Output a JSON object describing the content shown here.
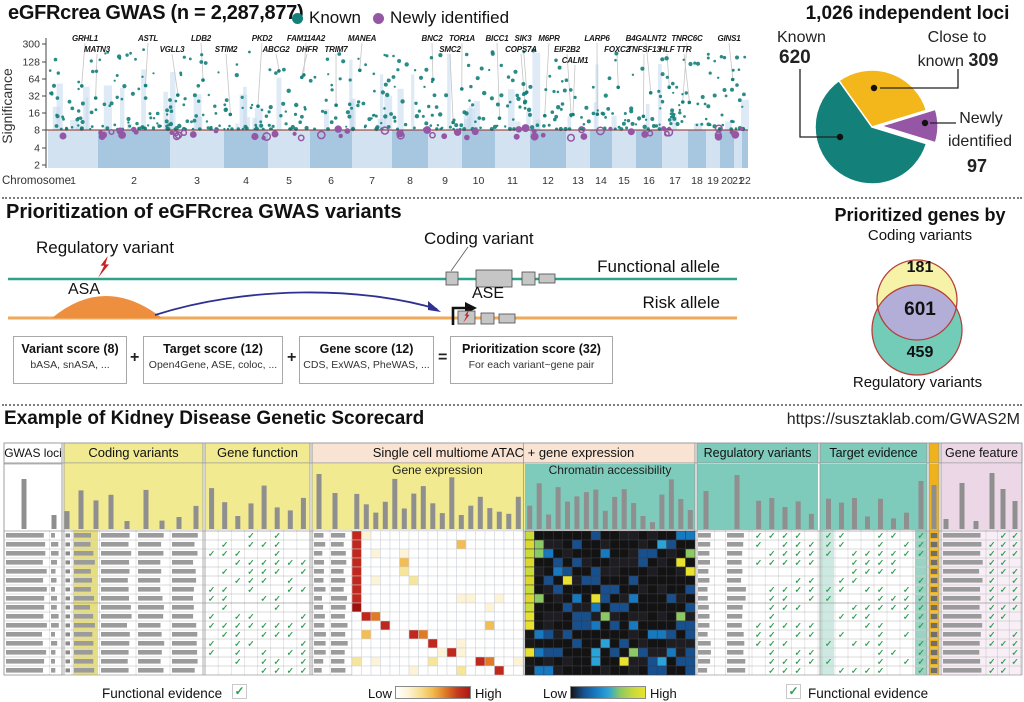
{
  "a": {
    "title": "eGFRcrea GWAS (n = 2,287,877)",
    "legend": [
      {
        "label": "Known",
        "color": "#14807a"
      },
      {
        "label": "Newly identified",
        "color": "#9456a5"
      }
    ],
    "y_axis": {
      "label": "Significance",
      "ticks": [
        "300",
        "128",
        "64",
        "32",
        "16",
        "8",
        "4",
        "2"
      ]
    },
    "x_axis": {
      "label": "Chromosome",
      "ticks": [
        "1",
        "2",
        "3",
        "4",
        "5",
        "6",
        "7",
        "8",
        "9",
        "10",
        "11",
        "12",
        "13",
        "14",
        "15",
        "16",
        "17",
        "18",
        "19",
        "20",
        "21",
        "22"
      ]
    },
    "pie": {
      "title": "1,026 independent loci",
      "known_label": "Known",
      "known_value": "620",
      "close_label_1": "Close to",
      "close_label_2": "known",
      "close_value": "309",
      "newly_label_1": "Newly",
      "newly_label_2": "identified",
      "newly_value": "97"
    }
  },
  "b": {
    "title": "Prioritization of eGFRcrea GWAS variants",
    "diagram": {
      "regulatory_variant": "Regulatory variant",
      "asa": "ASA",
      "coding_variant": "Coding variant",
      "ase": "ASE",
      "functional_allele": "Functional allele",
      "risk_allele": "Risk allele"
    },
    "boxes": [
      {
        "title": "Variant score (8)",
        "sub": "bASA, snASA, ..."
      },
      {
        "title": "Target score (12)",
        "sub": "Open4Gene, ASE, coloc, ..."
      },
      {
        "title": "Gene score (12)",
        "sub": "CDS, ExWAS, PheWAS, ..."
      },
      {
        "title": "Prioritization score (32)",
        "sub": "For each variant~gene pair"
      }
    ],
    "operators": [
      "+",
      "+",
      "="
    ],
    "venn": {
      "title": "Prioritized genes by",
      "top_label": "Coding variants",
      "bottom_label": "Regulatory variants",
      "coding_only": "181",
      "both": "601",
      "regulatory_only": "459"
    }
  },
  "c": {
    "title": "Example of Kidney Disease Genetic Scorecard",
    "url": "https://susztaklab.com/GWAS2M",
    "headers": {
      "gwas_loci": "GWAS loci",
      "coding_variants": "Coding variants",
      "gene_function": "Gene function",
      "single_cell": "Single cell multiome ATAC + gene expression",
      "regulatory_variants": "Regulatory variants",
      "target_evidence": "Target evidence",
      "gene_feature": "Gene feature"
    },
    "sub_headers": {
      "gene_expression": "Gene expression",
      "chromatin": "Chromatin accessibility"
    },
    "legend": {
      "functional_evidence_left": "Functional evidence",
      "functional_evidence_right": "Functional evidence",
      "low_1": "Low",
      "high_1": "High",
      "low_2": "Low",
      "high_2": "High",
      "check_icon": "✓"
    }
  },
  "colors": {
    "known_teal": "#14807a",
    "newly_purple": "#9456a5",
    "pie_yellow": "#f3b71b",
    "band_light": "#d2e2f0",
    "band_dark": "#a7c7e0",
    "threshold_red": "#8a2a25",
    "functional_teal": "#2fa28c",
    "risk_orange": "#f0a85a",
    "asa_orange": "#ee8f3f",
    "arrow_navy": "#2e3192",
    "bolt_red": "#cc1f1f",
    "gene_box_gray": "#c6c6c6",
    "venn_yellow": "#f6f3a9",
    "venn_lavender": "#b3aed8",
    "venn_teal": "#72ccb7",
    "venn_stroke": "#b5413c",
    "sc_yellow": "#f1ea90",
    "sc_peach": "#f9e3d3",
    "sc_teal": "#7ecabb",
    "sc_orange": "#f0b21c",
    "sc_pink": "#ecd7e6",
    "check_green": "#2f9e52",
    "bar_gray": "#9b9b9b",
    "hist_gray": "#8f8f8f"
  },
  "chart_data": [
    {
      "type": "scatter",
      "name": "manhattan_plot",
      "title": "eGFRcrea GWAS (n = 2,287,877)",
      "ylabel": "Significance",
      "yticks": [
        300,
        128,
        64,
        32,
        16,
        8,
        4,
        2
      ],
      "xlabel": "Chromosome",
      "categories": [
        "1",
        "2",
        "3",
        "4",
        "5",
        "6",
        "7",
        "8",
        "9",
        "10",
        "11",
        "12",
        "13",
        "14",
        "15",
        "16",
        "17",
        "18",
        "19",
        "20",
        "21",
        "22"
      ],
      "significance_threshold": 8,
      "series": [
        {
          "name": "Known",
          "color": "#14807a"
        },
        {
          "name": "Newly identified",
          "color": "#9456a5"
        }
      ],
      "annotated_genes": {
        "row1": [
          [
            "GRHL1",
            85
          ],
          [
            "ASTL",
            148
          ],
          [
            "LDB2",
            201
          ],
          [
            "PKD2",
            262
          ],
          [
            "FAM114A2",
            306
          ],
          [
            "MANEA",
            362
          ],
          [
            "BNC2",
            432
          ],
          [
            "TOR1A",
            462
          ],
          [
            "BICC1",
            497
          ],
          [
            "SIK3",
            523
          ],
          [
            "M6PR",
            549
          ],
          [
            "LARP6",
            597
          ],
          [
            "B4GALNT2",
            646
          ],
          [
            "TNRC6C",
            687
          ],
          [
            "GINS1",
            729
          ]
        ],
        "row2": [
          [
            "MATN3",
            97
          ],
          [
            "VGLL3",
            172
          ],
          [
            "STIM2",
            226
          ],
          [
            "ABCG2",
            276
          ],
          [
            "DHFR",
            307
          ],
          [
            "TRIM7",
            336
          ],
          [
            "SMC2",
            450
          ],
          [
            "COPS7A",
            521
          ],
          [
            "EIF2B2",
            567
          ],
          [
            "FOXC2",
            617
          ],
          [
            "TNFSF13",
            644
          ],
          [
            "HLF",
            667
          ],
          [
            "TTR",
            684
          ]
        ],
        "row3": [
          [
            "CALM1",
            575
          ]
        ]
      },
      "chrom_bounds": [
        48,
        98,
        170,
        224,
        268,
        310,
        352,
        392,
        428,
        462,
        495,
        530,
        566,
        590,
        612,
        636,
        662,
        688,
        706,
        720,
        734,
        742,
        748
      ],
      "seed": 42
    },
    {
      "type": "pie",
      "title": "1,026 independent loci",
      "total": 1026,
      "slices": [
        {
          "label": "Known",
          "value": 620,
          "color": "#14807a"
        },
        {
          "label": "Close to known",
          "value": 309,
          "color": "#f3b71b"
        },
        {
          "label": "Newly identified",
          "value": 97,
          "color": "#9456a5",
          "exploded": true
        }
      ]
    },
    {
      "type": "venn",
      "title": "Prioritized genes by",
      "sets": {
        "coding_only": 181,
        "both": 601,
        "regulatory_only": 459
      }
    },
    {
      "type": "heatmap",
      "name": "gene_expression",
      "rows": 16,
      "cols": 18,
      "scale": {
        "low": "Low",
        "high": "High"
      },
      "palette": [
        "#ffffff",
        "#fdf3d6",
        "#f7df8e",
        "#f2b94d",
        "#df7b27",
        "#c23a1d",
        "#b01713"
      ],
      "seed": 7
    },
    {
      "type": "heatmap",
      "name": "chromatin_accessibility",
      "rows": 16,
      "cols": 18,
      "scale": {
        "low": "Low",
        "high": "High"
      },
      "palette": [
        "#141414",
        "#17508c",
        "#1779c0",
        "#2aa3d8",
        "#8cc863",
        "#c6d93e",
        "#e8e22e"
      ],
      "seed": 11
    }
  ]
}
